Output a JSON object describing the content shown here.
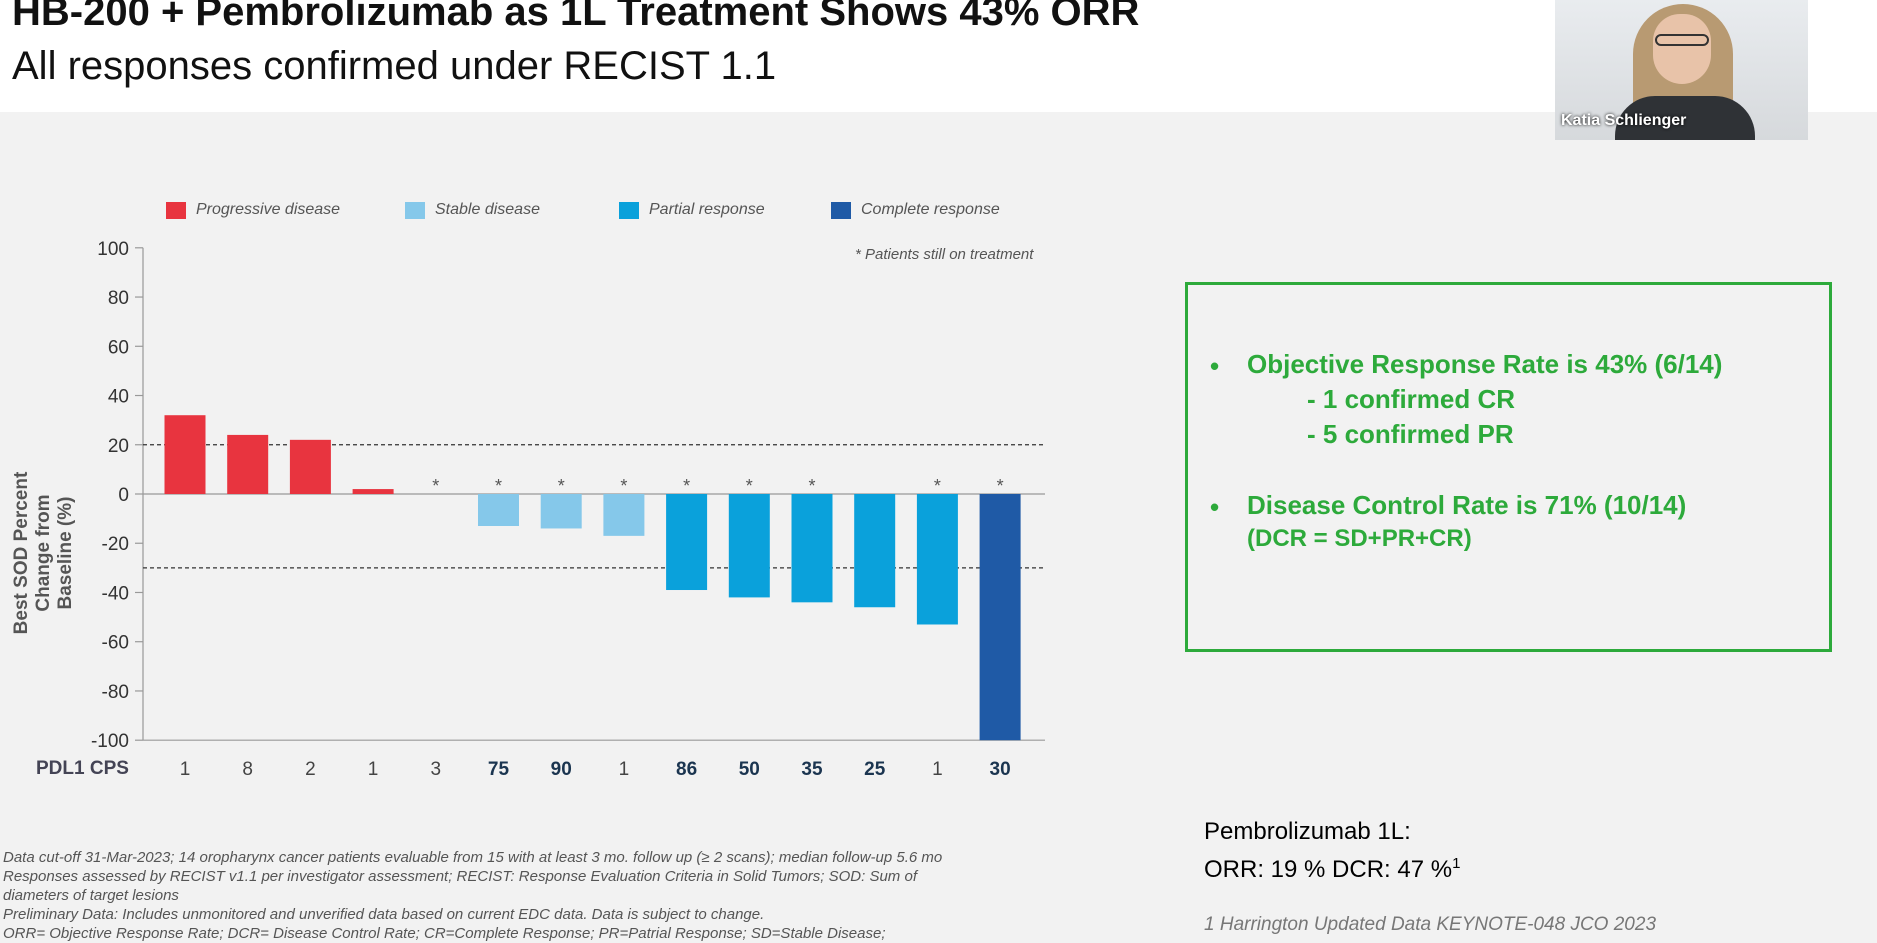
{
  "header": {
    "title": "HB-200 + Pembrolizumab as 1L Treatment Shows 43% ORR",
    "subtitle": "All responses confirmed under RECIST 1.1"
  },
  "video": {
    "participant_name": "Katia Schlienger"
  },
  "legend": [
    {
      "label": "Progressive disease",
      "color": "#e8343f"
    },
    {
      "label": "Stable disease",
      "color": "#85c8ea"
    },
    {
      "label": "Partial response",
      "color": "#0aa1db"
    },
    {
      "label": "Complete response",
      "color": "#1f5aa6"
    }
  ],
  "note": "* Patients still on treatment",
  "chart_data": {
    "type": "bar",
    "ylabel": "Best SOD Percent Change from Baseline (%)",
    "xlabel": "PDL1 CPS",
    "ylim": [
      -100,
      100
    ],
    "yticks": [
      100,
      80,
      60,
      40,
      20,
      0,
      -20,
      -40,
      -60,
      -80,
      -100
    ],
    "reference_lines": [
      20,
      -30
    ],
    "categories": [
      "1",
      "8",
      "2",
      "1",
      "3",
      "75",
      "90",
      "1",
      "86",
      "50",
      "35",
      "25",
      "1",
      "30"
    ],
    "category_bold": [
      false,
      false,
      false,
      false,
      false,
      true,
      true,
      false,
      true,
      true,
      true,
      true,
      false,
      true
    ],
    "values": [
      32,
      24,
      22,
      2,
      0,
      -13,
      -14,
      -17,
      -39,
      -42,
      -44,
      -46,
      -53,
      -100
    ],
    "response": [
      "PD",
      "PD",
      "PD",
      "PD",
      "SD",
      "SD",
      "SD",
      "SD",
      "PR",
      "PR",
      "PR",
      "PR",
      "PR",
      "CR"
    ],
    "still_on_treatment": [
      false,
      false,
      false,
      false,
      true,
      true,
      true,
      true,
      true,
      true,
      true,
      false,
      true,
      true
    ],
    "grid": false
  },
  "summary_box": {
    "bullet": "•",
    "orr": "Objective Response Rate is 43% (6/14)",
    "cr": "- 1 confirmed CR",
    "pr": "- 5 confirmed PR",
    "dcr": "Disease Control Rate is 71% (10/14)",
    "dcr_def": "(DCR = SD+PR+CR)"
  },
  "pembro": {
    "line1": "Pembrolizumab 1L:",
    "line2": "ORR: 19 %  DCR: 47 %",
    "sup": "1"
  },
  "reference": "1 Harrington Updated Data KEYNOTE-048 JCO 2023",
  "footnotes": [
    "Data cut-off 31-Mar-2023; 14 oropharynx cancer patients evaluable from 15 with at least 3 mo. follow up (≥ 2 scans); median follow-up 5.6 mo",
    "Responses assessed by RECIST v1.1  per investigator assessment; RECIST: Response Evaluation Criteria in Solid Tumors; SOD: Sum of",
    "diameters of target lesions",
    "Preliminary Data: Includes unmonitored and unverified data based on current EDC data. Data is subject to change.",
    "ORR= Objective Response Rate; DCR= Disease Control Rate; CR=Complete Response; PR=Patrial Response; SD=Stable Disease;"
  ]
}
